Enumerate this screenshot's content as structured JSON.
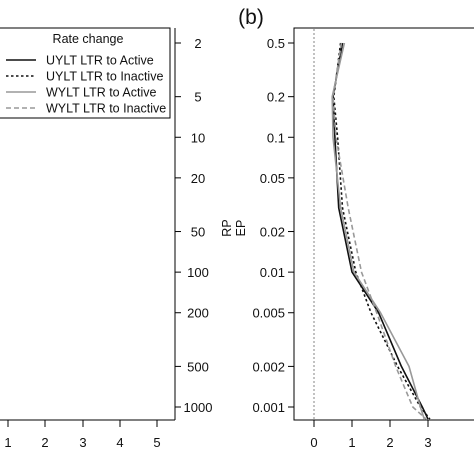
{
  "panel_label": "(b)",
  "legend": {
    "title": "Rate change",
    "entries": [
      {
        "label": "UYLT LTR to Active",
        "color": "#111111",
        "dash": "solid"
      },
      {
        "label": "UYLT LTR to Inactive",
        "color": "#111111",
        "dash": "dotted"
      },
      {
        "label": "WYLT LTR to Active",
        "color": "#999999",
        "dash": "solid"
      },
      {
        "label": "WYLT LTR to Inactive",
        "color": "#999999",
        "dash": "dashed"
      }
    ]
  },
  "chart_data": [
    {
      "type": "line",
      "panel": "left (partially visible)",
      "xlabel": "",
      "ylabel": "",
      "x_ticks": [
        "1",
        "2",
        "3",
        "4",
        "5"
      ],
      "y_ticks_right": [
        "2",
        "5",
        "10",
        "20",
        "50",
        "100",
        "200",
        "500",
        "1000"
      ],
      "y_scale": "log",
      "series": []
    },
    {
      "type": "line",
      "panel": "right",
      "ylabel_lines": [
        "RP",
        "EP"
      ],
      "xlabel": "",
      "xlim": [
        -0.3,
        3.45
      ],
      "ylim": [
        0.0008,
        0.55
      ],
      "y_scale": "log",
      "x_ticks": [
        0,
        1,
        2,
        3
      ],
      "x_tick_labels": [
        "0",
        "1",
        "2",
        "3"
      ],
      "y_ticks": [
        0.5,
        0.2,
        0.1,
        0.05,
        0.02,
        0.01,
        0.005,
        0.002,
        0.001
      ],
      "y_tick_labels": [
        "0.5",
        "0.2",
        "0.1",
        "0.05",
        "0.02",
        "0.01",
        "0.005",
        "0.002",
        "0.001"
      ],
      "reference_line_x": 0,
      "series": [
        {
          "name": "UYLT LTR to Active",
          "color": "#111111",
          "dash": "solid",
          "x": [
            0.75,
            0.5,
            0.55,
            0.65,
            1.0,
            1.7,
            2.3,
            2.85,
            3.0
          ],
          "y": [
            0.5,
            0.2,
            0.1,
            0.03,
            0.01,
            0.005,
            0.002,
            0.001,
            0.0008
          ]
        },
        {
          "name": "UYLT LTR to Inactive",
          "color": "#111111",
          "dash": "dotted",
          "x": [
            0.7,
            0.52,
            0.62,
            0.75,
            1.1,
            1.5,
            2.2,
            2.8,
            3.05
          ],
          "y": [
            0.5,
            0.2,
            0.1,
            0.03,
            0.01,
            0.005,
            0.002,
            0.001,
            0.0008
          ]
        },
        {
          "name": "WYLT LTR to Active",
          "color": "#999999",
          "dash": "solid",
          "x": [
            0.8,
            0.48,
            0.5,
            0.7,
            1.05,
            1.75,
            2.5,
            2.8,
            2.9
          ],
          "y": [
            0.5,
            0.2,
            0.1,
            0.03,
            0.01,
            0.005,
            0.002,
            0.001,
            0.0008
          ]
        },
        {
          "name": "WYLT LTR to Inactive",
          "color": "#999999",
          "dash": "dashed",
          "x": [
            0.72,
            0.5,
            0.58,
            0.9,
            1.25,
            1.65,
            2.15,
            2.6,
            2.95
          ],
          "y": [
            0.5,
            0.2,
            0.1,
            0.03,
            0.01,
            0.005,
            0.002,
            0.001,
            0.0008
          ]
        }
      ]
    }
  ]
}
